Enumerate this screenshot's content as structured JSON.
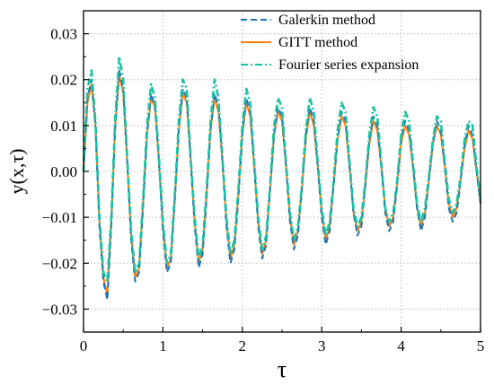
{
  "chart_data": {
    "type": "line",
    "title": "",
    "xlabel": "τ",
    "ylabel": "y(x,τ)",
    "xlim": [
      0,
      5
    ],
    "ylim": [
      -0.035,
      0.035
    ],
    "x_ticks": [
      0,
      1,
      2,
      3,
      4,
      5
    ],
    "y_ticks": [
      0.03,
      0.02,
      0.01,
      0.0,
      -0.01,
      -0.02,
      -0.03
    ],
    "x_tick_labels": [
      "0",
      "1",
      "2",
      "3",
      "4",
      "5"
    ],
    "y_tick_labels": [
      "0.03",
      "0.02",
      "0.01",
      "0.00",
      "−0.01",
      "−0.02",
      "−0.03"
    ],
    "grid": true,
    "legend_position": "top-right",
    "x": [
      0,
      0.05,
      0.1,
      0.15,
      0.2,
      0.25,
      0.3,
      0.35,
      0.4,
      0.45,
      0.5,
      0.55,
      0.6,
      0.65,
      0.7,
      0.75,
      0.8,
      0.85,
      0.9,
      0.95,
      1.0,
      1.05,
      1.1,
      1.15,
      1.2,
      1.25,
      1.3,
      1.35,
      1.4,
      1.45,
      1.5,
      1.55,
      1.6,
      1.65,
      1.7,
      1.75,
      1.8,
      1.85,
      1.9,
      1.95,
      2.0,
      2.05,
      2.1,
      2.15,
      2.2,
      2.25,
      2.3,
      2.35,
      2.4,
      2.45,
      2.5,
      2.55,
      2.6,
      2.65,
      2.7,
      2.75,
      2.8,
      2.85,
      2.9,
      2.95,
      3.0,
      3.05,
      3.1,
      3.15,
      3.2,
      3.25,
      3.3,
      3.35,
      3.4,
      3.45,
      3.5,
      3.55,
      3.6,
      3.65,
      3.7,
      3.75,
      3.8,
      3.85,
      3.9,
      3.95,
      4.0,
      4.05,
      4.1,
      4.15,
      4.2,
      4.25,
      4.3,
      4.35,
      4.4,
      4.45,
      4.5,
      4.55,
      4.6,
      4.65,
      4.7,
      4.75,
      4.8,
      4.85,
      4.9,
      4.95,
      5.0
    ],
    "series": [
      {
        "name": "Galerkin method",
        "color": "#1f77b4",
        "style": "dashed",
        "values": [
          0,
          0.016,
          0.02,
          0.01,
          -0.012,
          -0.024,
          -0.028,
          -0.012,
          0.01,
          0.022,
          0.018,
          0.002,
          -0.015,
          -0.024,
          -0.022,
          -0.008,
          0.008,
          0.017,
          0.014,
          0.002,
          -0.013,
          -0.022,
          -0.02,
          -0.006,
          0.009,
          0.018,
          0.016,
          0.002,
          -0.012,
          -0.021,
          -0.018,
          -0.006,
          0.009,
          0.017,
          0.014,
          0.002,
          -0.012,
          -0.02,
          -0.017,
          -0.006,
          0.008,
          0.016,
          0.013,
          0.001,
          -0.012,
          -0.019,
          -0.016,
          -0.004,
          0.008,
          0.014,
          0.012,
          0.001,
          -0.011,
          -0.017,
          -0.014,
          -0.004,
          0.008,
          0.014,
          0.011,
          0.001,
          -0.01,
          -0.016,
          -0.013,
          -0.003,
          0.007,
          0.013,
          0.011,
          0.001,
          -0.009,
          -0.014,
          -0.012,
          -0.003,
          0.007,
          0.012,
          0.01,
          0.001,
          -0.009,
          -0.013,
          -0.011,
          -0.003,
          0.007,
          0.011,
          0.009,
          0.001,
          -0.008,
          -0.013,
          -0.01,
          -0.002,
          0.006,
          0.011,
          0.009,
          0.001,
          -0.008,
          -0.011,
          -0.009,
          -0.002,
          0.006,
          0.01,
          0.008,
          0.0,
          -0.007
        ]
      },
      {
        "name": "GITT method",
        "color": "#ff7f0e",
        "style": "solid",
        "values": [
          0,
          0.015,
          0.019,
          0.01,
          -0.011,
          -0.023,
          -0.027,
          -0.011,
          0.01,
          0.021,
          0.017,
          0.002,
          -0.014,
          -0.023,
          -0.021,
          -0.007,
          0.008,
          0.016,
          0.014,
          0.002,
          -0.012,
          -0.021,
          -0.019,
          -0.006,
          0.009,
          0.017,
          0.015,
          0.002,
          -0.011,
          -0.02,
          -0.017,
          -0.005,
          0.009,
          0.016,
          0.013,
          0.002,
          -0.011,
          -0.019,
          -0.016,
          -0.005,
          0.008,
          0.015,
          0.012,
          0.001,
          -0.011,
          -0.018,
          -0.015,
          -0.004,
          0.008,
          0.013,
          0.011,
          0.001,
          -0.01,
          -0.016,
          -0.013,
          -0.004,
          0.007,
          0.013,
          0.01,
          0.001,
          -0.009,
          -0.015,
          -0.012,
          -0.003,
          0.007,
          0.012,
          0.01,
          0.001,
          -0.009,
          -0.013,
          -0.011,
          -0.003,
          0.006,
          0.011,
          0.009,
          0.001,
          -0.008,
          -0.012,
          -0.01,
          -0.003,
          0.006,
          0.01,
          0.008,
          0.001,
          -0.008,
          -0.012,
          -0.009,
          -0.002,
          0.006,
          0.01,
          0.008,
          0.001,
          -0.007,
          -0.01,
          -0.008,
          -0.002,
          0.005,
          0.009,
          0.007,
          0.0,
          -0.007
        ]
      },
      {
        "name": "Fourier series expansion",
        "color": "#17c5a3",
        "style": "dashdot",
        "values": [
          0,
          0.018,
          0.022,
          0.011,
          -0.01,
          -0.022,
          -0.024,
          -0.01,
          0.012,
          0.025,
          0.02,
          0.003,
          -0.013,
          -0.022,
          -0.02,
          -0.006,
          0.01,
          0.019,
          0.016,
          0.003,
          -0.011,
          -0.02,
          -0.018,
          -0.005,
          0.011,
          0.02,
          0.018,
          0.003,
          -0.01,
          -0.019,
          -0.016,
          -0.004,
          0.011,
          0.02,
          0.016,
          0.003,
          -0.01,
          -0.018,
          -0.015,
          -0.004,
          0.01,
          0.018,
          0.015,
          0.002,
          -0.01,
          -0.017,
          -0.014,
          -0.003,
          0.01,
          0.016,
          0.014,
          0.002,
          -0.009,
          -0.015,
          -0.012,
          -0.003,
          0.009,
          0.016,
          0.013,
          0.002,
          -0.008,
          -0.014,
          -0.011,
          -0.002,
          0.009,
          0.015,
          0.013,
          0.002,
          -0.008,
          -0.012,
          -0.01,
          -0.002,
          0.008,
          0.014,
          0.012,
          0.002,
          -0.008,
          -0.011,
          -0.009,
          -0.002,
          0.008,
          0.013,
          0.011,
          0.002,
          -0.007,
          -0.011,
          -0.008,
          -0.001,
          0.007,
          0.012,
          0.011,
          0.002,
          -0.006,
          -0.009,
          -0.007,
          -0.001,
          0.007,
          0.011,
          0.01,
          0.001,
          -0.006
        ]
      }
    ]
  }
}
